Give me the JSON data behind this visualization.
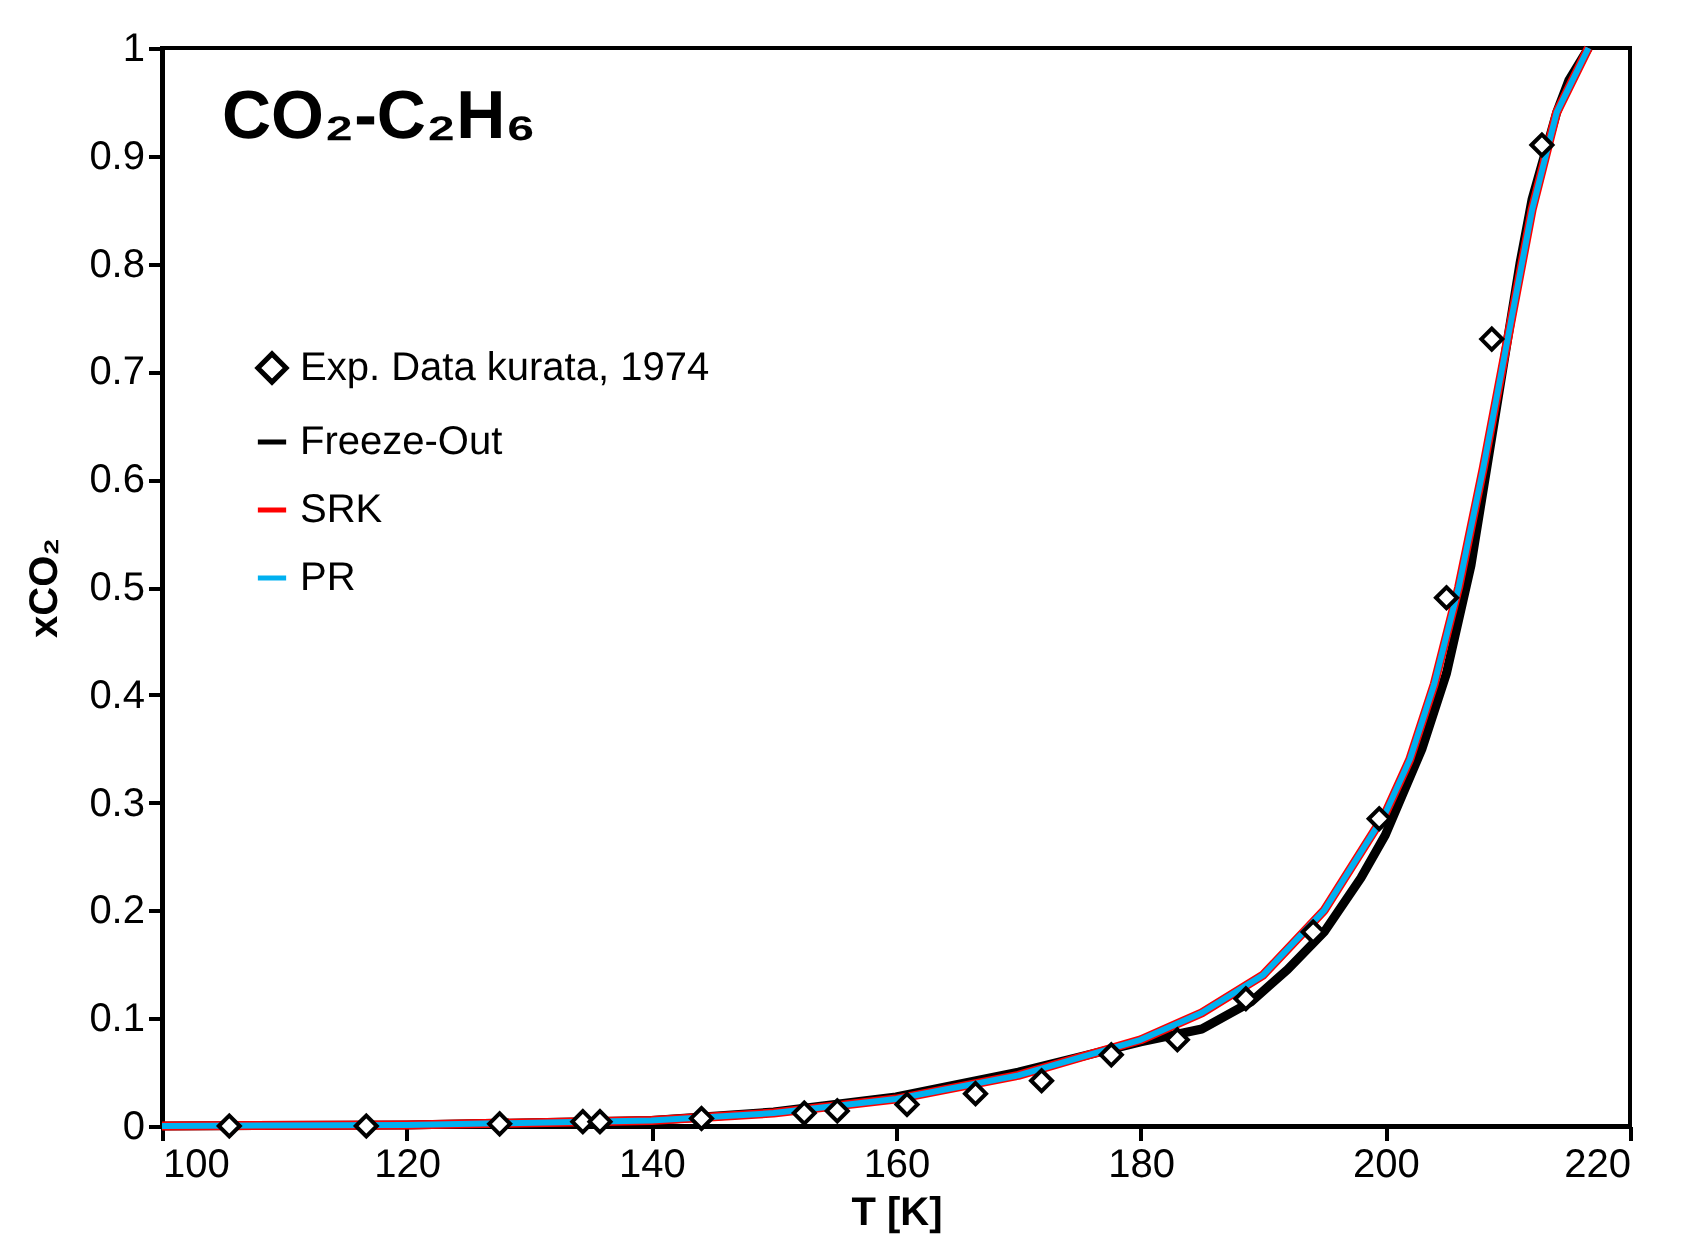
{
  "chart_data": {
    "type": "line",
    "title": "CO₂-C₂H₆",
    "xlabel": "T [K]",
    "ylabel": "xCO₂",
    "xlim": [
      100,
      220
    ],
    "xticks": [
      100,
      120,
      140,
      160,
      180,
      200,
      220
    ],
    "ylim": [
      0,
      1
    ],
    "yticks": [
      0,
      0.1,
      0.2,
      0.3,
      0.4,
      0.5,
      0.6,
      0.7,
      0.8,
      0.9,
      1
    ],
    "grid": false,
    "legend": "top left",
    "series": [
      {
        "name": "Exp. Data kurata, 1974",
        "type": "scatter",
        "marker": "diamond",
        "color": "#000000",
        "x": [
          105.5,
          116.7,
          127.6,
          134.4,
          135.8,
          144.1,
          152.5,
          155.2,
          160.9,
          166.5,
          171.9,
          177.6,
          183,
          188.6,
          194.1,
          199.5,
          205,
          208.7,
          212.8
        ],
        "values": [
          0,
          0,
          0.002,
          0.004,
          0.004,
          0.007,
          0.012,
          0.014,
          0.02,
          0.03,
          0.042,
          0.066,
          0.08,
          0.118,
          0.18,
          0.285,
          0.49,
          0.73,
          0.91
        ]
      },
      {
        "name": "Freeze-Out",
        "type": "line",
        "color": "#000000",
        "x": [
          100,
          120,
          140,
          150,
          160,
          170,
          180,
          185,
          189,
          192,
          195,
          198,
          200,
          203,
          205,
          207,
          208,
          209,
          210,
          211,
          212,
          213,
          214,
          215,
          216.6
        ],
        "values": [
          0,
          0.001,
          0.005,
          0.013,
          0.027,
          0.05,
          0.078,
          0.09,
          0.115,
          0.145,
          0.18,
          0.23,
          0.27,
          0.35,
          0.42,
          0.52,
          0.59,
          0.66,
          0.73,
          0.8,
          0.86,
          0.9,
          0.94,
          0.97,
          1
        ]
      },
      {
        "name": "SRK",
        "type": "line",
        "color": "#ff0000",
        "x": [
          100,
          120,
          140,
          150,
          160,
          170,
          180,
          185,
          190,
          195,
          200,
          202,
          204,
          206,
          208,
          210,
          212,
          214,
          216.6
        ],
        "values": [
          0,
          0.001,
          0.005,
          0.012,
          0.025,
          0.047,
          0.08,
          0.105,
          0.14,
          0.2,
          0.29,
          0.34,
          0.41,
          0.5,
          0.61,
          0.73,
          0.85,
          0.94,
          1
        ]
      },
      {
        "name": "PR",
        "type": "line",
        "color": "#00b0f0",
        "x": [
          100,
          120,
          140,
          150,
          160,
          170,
          180,
          185,
          190,
          195,
          200,
          202,
          204,
          206,
          208,
          210,
          212,
          214,
          216.6
        ],
        "values": [
          0,
          0.001,
          0.005,
          0.012,
          0.025,
          0.047,
          0.08,
          0.105,
          0.14,
          0.2,
          0.29,
          0.34,
          0.41,
          0.5,
          0.61,
          0.73,
          0.85,
          0.94,
          1
        ]
      }
    ]
  }
}
